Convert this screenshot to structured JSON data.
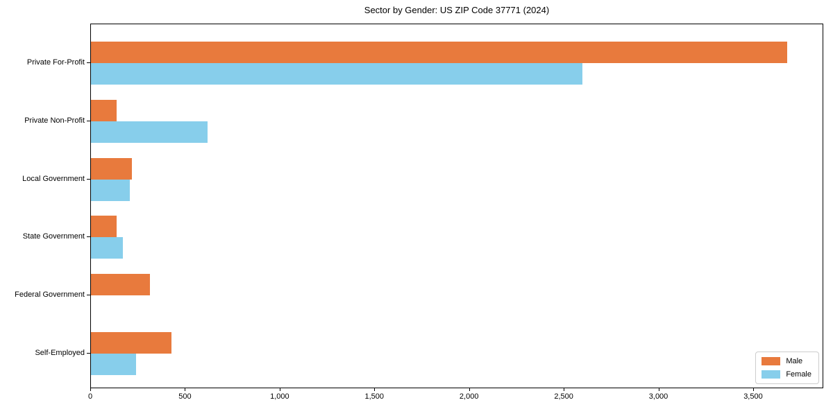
{
  "chart_data": {
    "type": "bar",
    "orientation": "horizontal",
    "title": "Sector by Gender: US ZIP Code 37771 (2024)",
    "xlabel": "",
    "ylabel": "",
    "categories": [
      "Private For-Profit",
      "Private Non-Profit",
      "Local Government",
      "State Government",
      "Federal Government",
      "Self-Employed"
    ],
    "series": [
      {
        "name": "Male",
        "color": "#e87a3d",
        "values": [
          3675,
          135,
          215,
          135,
          310,
          425
        ]
      },
      {
        "name": "Female",
        "color": "#87ceeb",
        "values": [
          2595,
          615,
          205,
          170,
          0,
          240
        ]
      }
    ],
    "xlim": [
      0,
      3863
    ],
    "xticks": [
      0,
      500,
      1000,
      1500,
      2000,
      2500,
      3000,
      3500
    ],
    "xtick_labels": [
      "0",
      "500",
      "1,000",
      "1,500",
      "2,000",
      "2,500",
      "3,000",
      "3,500"
    ],
    "grid": false,
    "legend_position": "lower right",
    "axis_color": "#000000",
    "background_color": "#ffffff"
  }
}
